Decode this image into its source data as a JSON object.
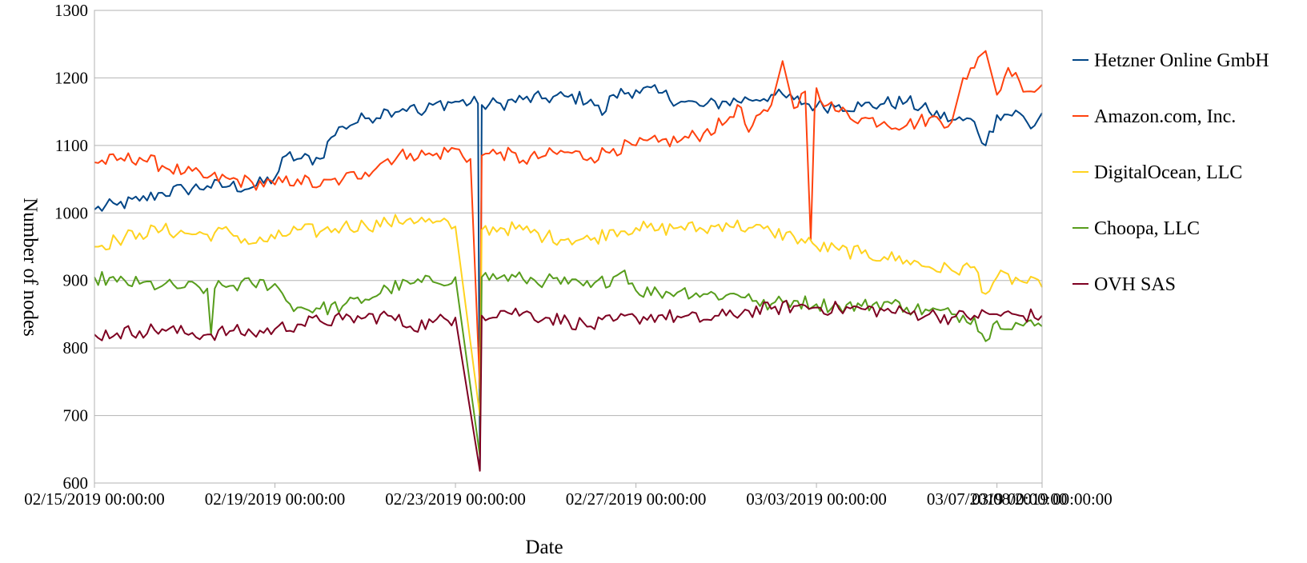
{
  "chart_data": {
    "type": "line",
    "xlabel": "Date",
    "ylabel": "Number of nodes",
    "ylim": [
      600,
      1300
    ],
    "yticks": [
      600,
      700,
      800,
      900,
      1000,
      1100,
      1200,
      1300
    ],
    "xlim": [
      "02/15/2019 00:00:00",
      "03/08/2019 00:00:00"
    ],
    "xtick_labels": [
      "02/15/2019 00:00:00",
      "02/19/2019 00:00:00",
      "02/23/2019 00:00:00",
      "02/27/2019 00:00:00",
      "03/03/2019 00:00:00",
      "03/07/2019 00:00:00",
      "03/08/2019 00:00:00"
    ],
    "grid": true,
    "legend_position": "right",
    "series": [
      {
        "name": "Hetzner Online GmbH",
        "color": "#004586",
        "points": [
          [
            "02/15/2019 00:00:00",
            1005
          ],
          [
            "02/15/2019 12:00:00",
            1012
          ],
          [
            "02/16/2019 00:00:00",
            1018
          ],
          [
            "02/16/2019 12:00:00",
            1030
          ],
          [
            "02/17/2019 00:00:00",
            1035
          ],
          [
            "02/17/2019 12:00:00",
            1040
          ],
          [
            "02/18/2019 00:00:00",
            1040
          ],
          [
            "02/18/2019 12:00:00",
            1038
          ],
          [
            "02/19/2019 00:00:00",
            1052
          ],
          [
            "02/19/2019 06:00:00",
            1085
          ],
          [
            "02/19/2019 12:00:00",
            1080
          ],
          [
            "02/20/2019 00:00:00",
            1080
          ],
          [
            "02/20/2019 06:00:00",
            1112
          ],
          [
            "02/20/2019 12:00:00",
            1128
          ],
          [
            "02/21/2019 00:00:00",
            1140
          ],
          [
            "02/21/2019 12:00:00",
            1152
          ],
          [
            "02/22/2019 00:00:00",
            1158
          ],
          [
            "02/22/2019 06:00:00",
            1145
          ],
          [
            "02/22/2019 12:00:00",
            1160
          ],
          [
            "02/23/2019 00:00:00",
            1165
          ],
          [
            "02/23/2019 12:00:00",
            1162
          ],
          [
            "02/23/2019 13:00:00",
            620
          ],
          [
            "02/23/2019 14:00:00",
            1160
          ],
          [
            "02/24/2019 00:00:00",
            1162
          ],
          [
            "02/24/2019 12:00:00",
            1168
          ],
          [
            "02/25/2019 00:00:00",
            1170
          ],
          [
            "02/25/2019 12:00:00",
            1172
          ],
          [
            "02/26/2019 00:00:00",
            1168
          ],
          [
            "02/26/2019 06:00:00",
            1145
          ],
          [
            "02/26/2019 12:00:00",
            1175
          ],
          [
            "02/27/2019 00:00:00",
            1182
          ],
          [
            "02/27/2019 12:00:00",
            1178
          ],
          [
            "02/28/2019 00:00:00",
            1165
          ],
          [
            "02/28/2019 12:00:00",
            1158
          ],
          [
            "03/01/2019 00:00:00",
            1165
          ],
          [
            "03/01/2019 12:00:00",
            1168
          ],
          [
            "03/02/2019 00:00:00",
            1175
          ],
          [
            "03/02/2019 12:00:00",
            1168
          ],
          [
            "03/03/2019 00:00:00",
            1158
          ],
          [
            "03/03/2019 12:00:00",
            1160
          ],
          [
            "03/04/2019 00:00:00",
            1158
          ],
          [
            "03/04/2019 12:00:00",
            1162
          ],
          [
            "03/05/2019 00:00:00",
            1165
          ],
          [
            "03/05/2019 12:00:00",
            1150
          ],
          [
            "03/06/2019 00:00:00",
            1138
          ],
          [
            "03/06/2019 12:00:00",
            1135
          ],
          [
            "03/06/2019 18:00:00",
            1100
          ],
          [
            "03/07/2019 00:00:00",
            1145
          ],
          [
            "03/07/2019 12:00:00",
            1148
          ],
          [
            "03/07/2019 18:00:00",
            1125
          ],
          [
            "03/08/2019 00:00:00",
            1148
          ]
        ]
      },
      {
        "name": "Amazon.com, Inc.",
        "color": "#ff420e",
        "points": [
          [
            "02/15/2019 00:00:00",
            1075
          ],
          [
            "02/15/2019 12:00:00",
            1078
          ],
          [
            "02/16/2019 00:00:00",
            1082
          ],
          [
            "02/16/2019 12:00:00",
            1070
          ],
          [
            "02/17/2019 00:00:00",
            1060
          ],
          [
            "02/17/2019 12:00:00",
            1052
          ],
          [
            "02/18/2019 00:00:00",
            1050
          ],
          [
            "02/18/2019 12:00:00",
            1045
          ],
          [
            "02/19/2019 00:00:00",
            1042
          ],
          [
            "02/19/2019 12:00:00",
            1050
          ],
          [
            "02/20/2019 00:00:00",
            1040
          ],
          [
            "02/20/2019 12:00:00",
            1050
          ],
          [
            "02/21/2019 00:00:00",
            1060
          ],
          [
            "02/21/2019 12:00:00",
            1080
          ],
          [
            "02/22/2019 00:00:00",
            1088
          ],
          [
            "02/22/2019 12:00:00",
            1085
          ],
          [
            "02/23/2019 00:00:00",
            1095
          ],
          [
            "02/23/2019 08:00:00",
            1080
          ],
          [
            "02/23/2019 13:00:00",
            740
          ],
          [
            "02/23/2019 14:00:00",
            1085
          ],
          [
            "02/24/2019 00:00:00",
            1090
          ],
          [
            "02/24/2019 12:00:00",
            1078
          ],
          [
            "02/25/2019 00:00:00",
            1085
          ],
          [
            "02/25/2019 12:00:00",
            1090
          ],
          [
            "02/26/2019 00:00:00",
            1082
          ],
          [
            "02/26/2019 12:00:00",
            1095
          ],
          [
            "02/27/2019 00:00:00",
            1100
          ],
          [
            "02/27/2019 12:00:00",
            1105
          ],
          [
            "02/28/2019 00:00:00",
            1108
          ],
          [
            "02/28/2019 12:00:00",
            1118
          ],
          [
            "03/01/2019 00:00:00",
            1135
          ],
          [
            "03/01/2019 06:00:00",
            1160
          ],
          [
            "03/01/2019 12:00:00",
            1120
          ],
          [
            "03/02/2019 00:00:00",
            1160
          ],
          [
            "03/02/2019 06:00:00",
            1225
          ],
          [
            "03/02/2019 12:00:00",
            1155
          ],
          [
            "03/02/2019 18:00:00",
            1180
          ],
          [
            "03/02/2019 21:00:00",
            960
          ],
          [
            "03/02/2019 23:00:00",
            1150
          ],
          [
            "03/03/2019 00:00:00",
            1185
          ],
          [
            "03/03/2019 06:00:00",
            1160
          ],
          [
            "03/03/2019 12:00:00",
            1150
          ],
          [
            "03/04/2019 00:00:00",
            1140
          ],
          [
            "03/04/2019 12:00:00",
            1135
          ],
          [
            "03/05/2019 00:00:00",
            1130
          ],
          [
            "03/05/2019 12:00:00",
            1140
          ],
          [
            "03/06/2019 00:00:00",
            1135
          ],
          [
            "03/06/2019 06:00:00",
            1200
          ],
          [
            "03/06/2019 12:00:00",
            1215
          ],
          [
            "03/06/2019 18:00:00",
            1240
          ],
          [
            "03/07/2019 00:00:00",
            1175
          ],
          [
            "03/07/2019 06:00:00",
            1215
          ],
          [
            "03/07/2019 12:00:00",
            1195
          ],
          [
            "03/07/2019 18:00:00",
            1180
          ],
          [
            "03/08/2019 00:00:00",
            1190
          ]
        ]
      },
      {
        "name": "DigitalOcean, LLC",
        "color": "#ffd320",
        "points": [
          [
            "02/15/2019 00:00:00",
            950
          ],
          [
            "02/15/2019 12:00:00",
            960
          ],
          [
            "02/16/2019 00:00:00",
            970
          ],
          [
            "02/16/2019 12:00:00",
            975
          ],
          [
            "02/17/2019 00:00:00",
            970
          ],
          [
            "02/17/2019 12:00:00",
            968
          ],
          [
            "02/18/2019 00:00:00",
            972
          ],
          [
            "02/18/2019 12:00:00",
            955
          ],
          [
            "02/19/2019 00:00:00",
            962
          ],
          [
            "02/19/2019 12:00:00",
            975
          ],
          [
            "02/20/2019 00:00:00",
            972
          ],
          [
            "02/20/2019 12:00:00",
            980
          ],
          [
            "02/21/2019 00:00:00",
            982
          ],
          [
            "02/21/2019 12:00:00",
            985
          ],
          [
            "02/22/2019 00:00:00",
            992
          ],
          [
            "02/22/2019 12:00:00",
            985
          ],
          [
            "02/23/2019 00:00:00",
            980
          ],
          [
            "02/23/2019 13:00:00",
            700
          ],
          [
            "02/23/2019 14:00:00",
            975
          ],
          [
            "02/24/2019 00:00:00",
            978
          ],
          [
            "02/24/2019 12:00:00",
            975
          ],
          [
            "02/25/2019 00:00:00",
            965
          ],
          [
            "02/25/2019 12:00:00",
            962
          ],
          [
            "02/26/2019 00:00:00",
            960
          ],
          [
            "02/26/2019 12:00:00",
            975
          ],
          [
            "02/27/2019 00:00:00",
            978
          ],
          [
            "02/27/2019 12:00:00",
            975
          ],
          [
            "02/28/2019 00:00:00",
            980
          ],
          [
            "02/28/2019 12:00:00",
            975
          ],
          [
            "03/01/2019 00:00:00",
            985
          ],
          [
            "03/01/2019 12:00:00",
            978
          ],
          [
            "03/02/2019 00:00:00",
            972
          ],
          [
            "03/02/2019 12:00:00",
            965
          ],
          [
            "03/03/2019 00:00:00",
            950
          ],
          [
            "03/03/2019 12:00:00",
            945
          ],
          [
            "03/04/2019 00:00:00",
            940
          ],
          [
            "03/04/2019 12:00:00",
            935
          ],
          [
            "03/05/2019 00:00:00",
            930
          ],
          [
            "03/05/2019 12:00:00",
            920
          ],
          [
            "03/06/2019 00:00:00",
            915
          ],
          [
            "03/06/2019 12:00:00",
            920
          ],
          [
            "03/06/2019 18:00:00",
            880
          ],
          [
            "03/07/2019 00:00:00",
            905
          ],
          [
            "03/07/2019 12:00:00",
            900
          ],
          [
            "03/08/2019 00:00:00",
            890
          ]
        ]
      },
      {
        "name": "Choopa, LLC",
        "color": "#579d1c",
        "points": [
          [
            "02/15/2019 00:00:00",
            905
          ],
          [
            "02/15/2019 12:00:00",
            898
          ],
          [
            "02/16/2019 00:00:00",
            895
          ],
          [
            "02/16/2019 12:00:00",
            892
          ],
          [
            "02/17/2019 00:00:00",
            890
          ],
          [
            "02/17/2019 12:00:00",
            888
          ],
          [
            "02/17/2019 14:00:00",
            820
          ],
          [
            "02/17/2019 16:00:00",
            888
          ],
          [
            "02/18/2019 00:00:00",
            892
          ],
          [
            "02/18/2019 12:00:00",
            895
          ],
          [
            "02/19/2019 00:00:00",
            895
          ],
          [
            "02/19/2019 06:00:00",
            870
          ],
          [
            "02/19/2019 12:00:00",
            860
          ],
          [
            "02/20/2019 00:00:00",
            858
          ],
          [
            "02/20/2019 12:00:00",
            862
          ],
          [
            "02/21/2019 00:00:00",
            872
          ],
          [
            "02/21/2019 12:00:00",
            888
          ],
          [
            "02/22/2019 00:00:00",
            895
          ],
          [
            "02/22/2019 12:00:00",
            898
          ],
          [
            "02/23/2019 00:00:00",
            905
          ],
          [
            "02/23/2019 13:00:00",
            640
          ],
          [
            "02/23/2019 14:00:00",
            905
          ],
          [
            "02/24/2019 00:00:00",
            905
          ],
          [
            "02/24/2019 12:00:00",
            902
          ],
          [
            "02/25/2019 00:00:00",
            900
          ],
          [
            "02/25/2019 12:00:00",
            895
          ],
          [
            "02/26/2019 00:00:00",
            890
          ],
          [
            "02/26/2019 12:00:00",
            905
          ],
          [
            "02/26/2019 18:00:00",
            915
          ],
          [
            "02/27/2019 00:00:00",
            885
          ],
          [
            "02/27/2019 12:00:00",
            882
          ],
          [
            "02/28/2019 00:00:00",
            885
          ],
          [
            "02/28/2019 12:00:00",
            880
          ],
          [
            "03/01/2019 00:00:00",
            878
          ],
          [
            "03/01/2019 12:00:00",
            880
          ],
          [
            "03/01/2019 18:00:00",
            862
          ],
          [
            "03/02/2019 00:00:00",
            865
          ],
          [
            "03/02/2019 12:00:00",
            870
          ],
          [
            "03/03/2019 00:00:00",
            865
          ],
          [
            "03/03/2019 12:00:00",
            862
          ],
          [
            "03/04/2019 00:00:00",
            862
          ],
          [
            "03/04/2019 12:00:00",
            868
          ],
          [
            "03/05/2019 00:00:00",
            860
          ],
          [
            "03/05/2019 12:00:00",
            855
          ],
          [
            "03/06/2019 00:00:00",
            850
          ],
          [
            "03/06/2019 12:00:00",
            845
          ],
          [
            "03/06/2019 18:00:00",
            810
          ],
          [
            "03/07/2019 00:00:00",
            840
          ],
          [
            "03/07/2019 12:00:00",
            835
          ],
          [
            "03/08/2019 00:00:00",
            832
          ]
        ]
      },
      {
        "name": "OVH SAS",
        "color": "#7e0021",
        "points": [
          [
            "02/15/2019 00:00:00",
            820
          ],
          [
            "02/15/2019 12:00:00",
            822
          ],
          [
            "02/16/2019 00:00:00",
            825
          ],
          [
            "02/16/2019 12:00:00",
            828
          ],
          [
            "02/17/2019 00:00:00",
            822
          ],
          [
            "02/17/2019 12:00:00",
            820
          ],
          [
            "02/18/2019 00:00:00",
            825
          ],
          [
            "02/18/2019 12:00:00",
            822
          ],
          [
            "02/19/2019 00:00:00",
            828
          ],
          [
            "02/19/2019 12:00:00",
            835
          ],
          [
            "02/20/2019 00:00:00",
            840
          ],
          [
            "02/20/2019 12:00:00",
            842
          ],
          [
            "02/21/2019 00:00:00",
            845
          ],
          [
            "02/21/2019 12:00:00",
            848
          ],
          [
            "02/22/2019 00:00:00",
            832
          ],
          [
            "02/22/2019 12:00:00",
            838
          ],
          [
            "02/23/2019 00:00:00",
            845
          ],
          [
            "02/23/2019 13:00:00",
            618
          ],
          [
            "02/23/2019 14:00:00",
            848
          ],
          [
            "02/24/2019 00:00:00",
            855
          ],
          [
            "02/24/2019 12:00:00",
            852
          ],
          [
            "02/25/2019 00:00:00",
            845
          ],
          [
            "02/25/2019 12:00:00",
            840
          ],
          [
            "02/26/2019 00:00:00",
            832
          ],
          [
            "02/26/2019 12:00:00",
            840
          ],
          [
            "02/27/2019 00:00:00",
            845
          ],
          [
            "02/27/2019 12:00:00",
            848
          ],
          [
            "02/28/2019 00:00:00",
            845
          ],
          [
            "02/28/2019 12:00:00",
            842
          ],
          [
            "03/01/2019 00:00:00",
            848
          ],
          [
            "03/01/2019 12:00:00",
            855
          ],
          [
            "03/02/2019 00:00:00",
            858
          ],
          [
            "03/02/2019 12:00:00",
            862
          ],
          [
            "03/03/2019 00:00:00",
            860
          ],
          [
            "03/03/2019 12:00:00",
            858
          ],
          [
            "03/04/2019 00:00:00",
            858
          ],
          [
            "03/04/2019 12:00:00",
            855
          ],
          [
            "03/05/2019 00:00:00",
            852
          ],
          [
            "03/05/2019 12:00:00",
            850
          ],
          [
            "03/06/2019 00:00:00",
            845
          ],
          [
            "03/06/2019 12:00:00",
            848
          ],
          [
            "03/07/2019 00:00:00",
            850
          ],
          [
            "03/07/2019 12:00:00",
            848
          ],
          [
            "03/08/2019 00:00:00",
            848
          ]
        ]
      }
    ]
  }
}
